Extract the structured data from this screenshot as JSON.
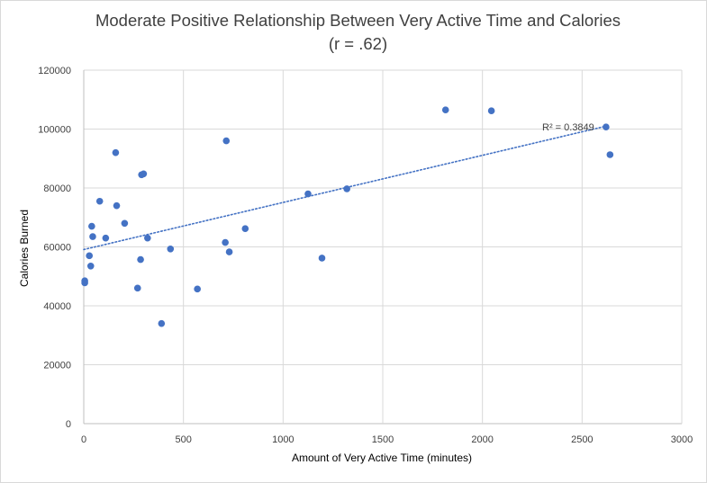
{
  "chart_data": {
    "type": "scatter",
    "title": "Moderate Positive Relationship Between Very Active Time and Calories",
    "subtitle": "(r = .62)",
    "xlabel": "Amount of Very Active Time (minutes)",
    "ylabel": "Calories Burned",
    "xlim": [
      0,
      3000
    ],
    "ylim": [
      0,
      120000
    ],
    "x_ticks": [
      "0",
      "500",
      "1000",
      "1500",
      "2000",
      "2500",
      "3000"
    ],
    "y_ticks": [
      "0",
      "20000",
      "40000",
      "60000",
      "80000",
      "100000",
      "120000"
    ],
    "grid": true,
    "legend": "none",
    "marker_color": "#4472c4",
    "trendline": {
      "type": "linear",
      "style": "dotted",
      "color": "#4472c4",
      "from": [
        0,
        59100
      ],
      "to": [
        2620,
        101000
      ],
      "label": "R² = 0.3849"
    },
    "series": [
      {
        "points": [
          [
            5,
            48500
          ],
          [
            5,
            47800
          ],
          [
            28,
            57000
          ],
          [
            35,
            53500
          ],
          [
            40,
            67000
          ],
          [
            45,
            63500
          ],
          [
            80,
            75500
          ],
          [
            110,
            63000
          ],
          [
            160,
            92000
          ],
          [
            165,
            74000
          ],
          [
            205,
            68000
          ],
          [
            270,
            46000
          ],
          [
            285,
            55700
          ],
          [
            290,
            84500
          ],
          [
            300,
            84800
          ],
          [
            320,
            63000
          ],
          [
            390,
            34000
          ],
          [
            435,
            59300
          ],
          [
            570,
            45700
          ],
          [
            710,
            61500
          ],
          [
            715,
            96000
          ],
          [
            730,
            58300
          ],
          [
            810,
            66200
          ],
          [
            1125,
            78000
          ],
          [
            1195,
            56200
          ],
          [
            1320,
            79700
          ],
          [
            1815,
            106500
          ],
          [
            2045,
            106200
          ],
          [
            2620,
            100700
          ],
          [
            2640,
            91300
          ]
        ]
      }
    ]
  }
}
